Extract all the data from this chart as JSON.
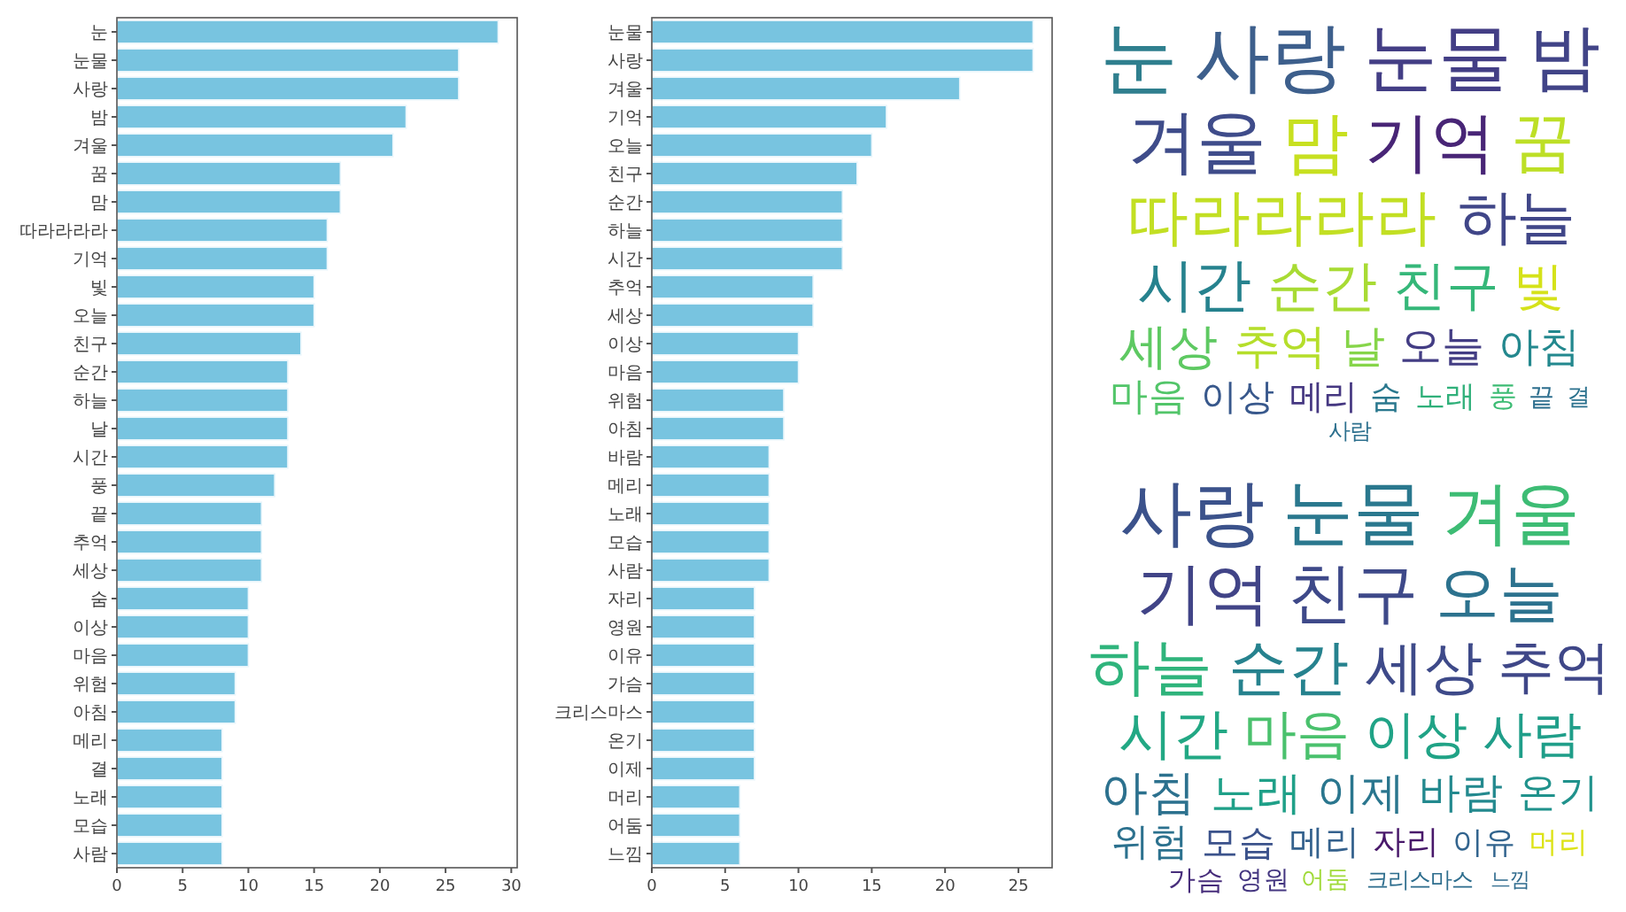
{
  "chart_data": [
    {
      "type": "bar",
      "orientation": "horizontal",
      "categories": [
        "눈",
        "눈물",
        "사랑",
        "밤",
        "겨울",
        "꿈",
        "맘",
        "따라라라라",
        "기억",
        "빛",
        "오늘",
        "친구",
        "순간",
        "하늘",
        "날",
        "시간",
        "풍",
        "끝",
        "추억",
        "세상",
        "숨",
        "이상",
        "마음",
        "위험",
        "아침",
        "메리",
        "결",
        "노래",
        "모습",
        "사람"
      ],
      "values": [
        29,
        26,
        26,
        22,
        21,
        17,
        17,
        16,
        16,
        15,
        15,
        14,
        13,
        13,
        13,
        13,
        12,
        11,
        11,
        11,
        10,
        10,
        10,
        9,
        9,
        8,
        8,
        8,
        8,
        8
      ],
      "color": "#78c4e0",
      "xlim": [
        0,
        30.45
      ],
      "xticks": [
        0,
        5,
        10,
        15,
        20,
        25,
        30
      ],
      "grid": false
    },
    {
      "type": "other",
      "categories": [
        "눈",
        "사랑",
        "눈물",
        "밤",
        "겨울",
        "맘",
        "기억",
        "꿈",
        "따라라라라",
        "하늘",
        "시간",
        "순간",
        "친구",
        "빛",
        "세상",
        "추억",
        "날",
        "오늘",
        "아침",
        "마음",
        "이상",
        "메리",
        "숨",
        "노래",
        "풍",
        "끝",
        "결",
        "사람"
      ],
      "colors": [
        "#2f7f8e",
        "#3d5f8c",
        "#433e85",
        "#414487",
        "#3f4c8a",
        "#c7e020",
        "#482576",
        "#bddf26",
        "#c2df23",
        "#404688",
        "#26828e",
        "#a8db34",
        "#35b779",
        "#d5e21a",
        "#5ec962",
        "#b5de2b",
        "#86d549",
        "#433d84",
        "#23888e",
        "#52c569",
        "#38588c",
        "#453781",
        "#2a788e",
        "#30b07a",
        "#3dbc74",
        "#2e6f8e",
        "#2c728e",
        "#2d708e"
      ]
    },
    {
      "type": "bar",
      "orientation": "horizontal",
      "categories": [
        "눈물",
        "사랑",
        "겨울",
        "기억",
        "오늘",
        "친구",
        "순간",
        "하늘",
        "시간",
        "추억",
        "세상",
        "이상",
        "마음",
        "위험",
        "아침",
        "바람",
        "메리",
        "노래",
        "모습",
        "사람",
        "자리",
        "영원",
        "이유",
        "가슴",
        "크리스마스",
        "온기",
        "이제",
        "머리",
        "어둠",
        "느낌"
      ],
      "values": [
        26,
        26,
        21,
        16,
        15,
        14,
        13,
        13,
        13,
        11,
        11,
        10,
        10,
        9,
        9,
        8,
        8,
        8,
        8,
        8,
        7,
        7,
        7,
        7,
        7,
        7,
        7,
        6,
        6,
        6
      ],
      "color": "#78c4e0",
      "xlim": [
        0,
        27.3
      ],
      "xticks": [
        0,
        5,
        10,
        15,
        20,
        25
      ],
      "grid": false
    },
    {
      "type": "other",
      "categories": [
        "사랑",
        "눈물",
        "겨울",
        "기억",
        "친구",
        "오늘",
        "하늘",
        "순간",
        "세상",
        "추억",
        "시간",
        "마음",
        "이상",
        "사람",
        "아침",
        "노래",
        "이제",
        "바람",
        "온기",
        "위험",
        "모습",
        "메리",
        "자리",
        "이유",
        "머리",
        "가슴",
        "영원",
        "어둠",
        "크리스마스",
        "느낌"
      ],
      "colors": [
        "#3b528b",
        "#2a788e",
        "#3dbc74",
        "#414487",
        "#3e4989",
        "#2c728e",
        "#2fb47c",
        "#26828e",
        "#3e4a89",
        "#3f4788",
        "#22a884",
        "#4ac16d",
        "#20a386",
        "#1f9e89",
        "#2c718e",
        "#1fa088",
        "#2a768e",
        "#23898e",
        "#20928c",
        "#2c718e",
        "#3b528b",
        "#34618d",
        "#48186a",
        "#32648e",
        "#dde318",
        "#472d7b",
        "#453781",
        "#a0da39",
        "#2e6e8e",
        "#2f6b8e"
      ]
    }
  ]
}
